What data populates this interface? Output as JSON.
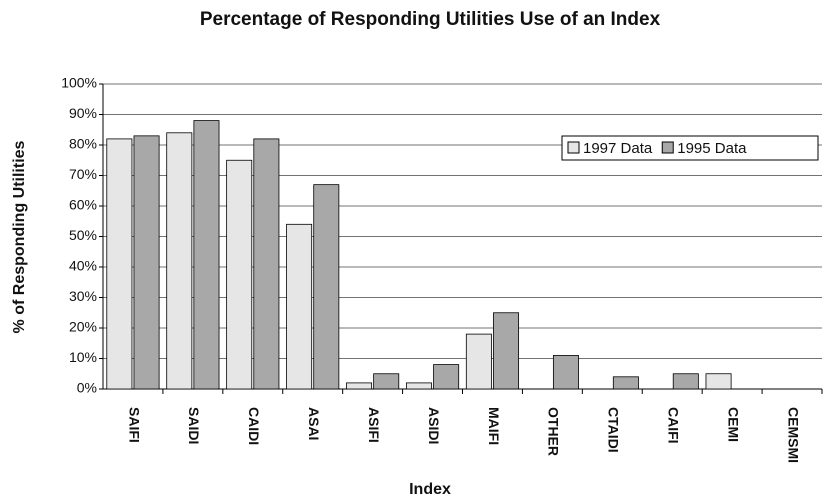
{
  "chart_data": {
    "type": "bar",
    "title": "Percentage of Responding Utilities Use of an Index",
    "x_label": "Index",
    "y_label": "% of Responding Utilities",
    "categories": [
      "SAIFI",
      "SAIDI",
      "CAIDI",
      "ASAI",
      "ASIFI",
      "ASIDI",
      "MAIFI",
      "OTHER",
      "CTAIDI",
      "CAIFI",
      "CEMI",
      "CEMSMI"
    ],
    "series": [
      {
        "name": "1997 Data",
        "color": "#e6e6e6",
        "values": [
          82,
          84,
          75,
          54,
          2,
          2,
          18,
          0,
          0,
          0,
          5,
          0
        ]
      },
      {
        "name": "1995 Data",
        "color": "#a8a8a8",
        "values": [
          83,
          88,
          82,
          67,
          5,
          8,
          25,
          11,
          4,
          5,
          0,
          0
        ]
      }
    ],
    "ylim": [
      0,
      100
    ],
    "yticks": [
      {
        "value": 0,
        "label": "0%"
      },
      {
        "value": 10,
        "label": "10%"
      },
      {
        "value": 20,
        "label": "20%"
      },
      {
        "value": 30,
        "label": "30%"
      },
      {
        "value": 40,
        "label": "40%"
      },
      {
        "value": 50,
        "label": "50%"
      },
      {
        "value": 60,
        "label": "60%"
      },
      {
        "value": 70,
        "label": "70%"
      },
      {
        "value": 80,
        "label": "80%"
      },
      {
        "value": 90,
        "label": "90%"
      },
      {
        "value": 100,
        "label": "100%"
      }
    ],
    "grid": true,
    "legend": "upper right"
  }
}
